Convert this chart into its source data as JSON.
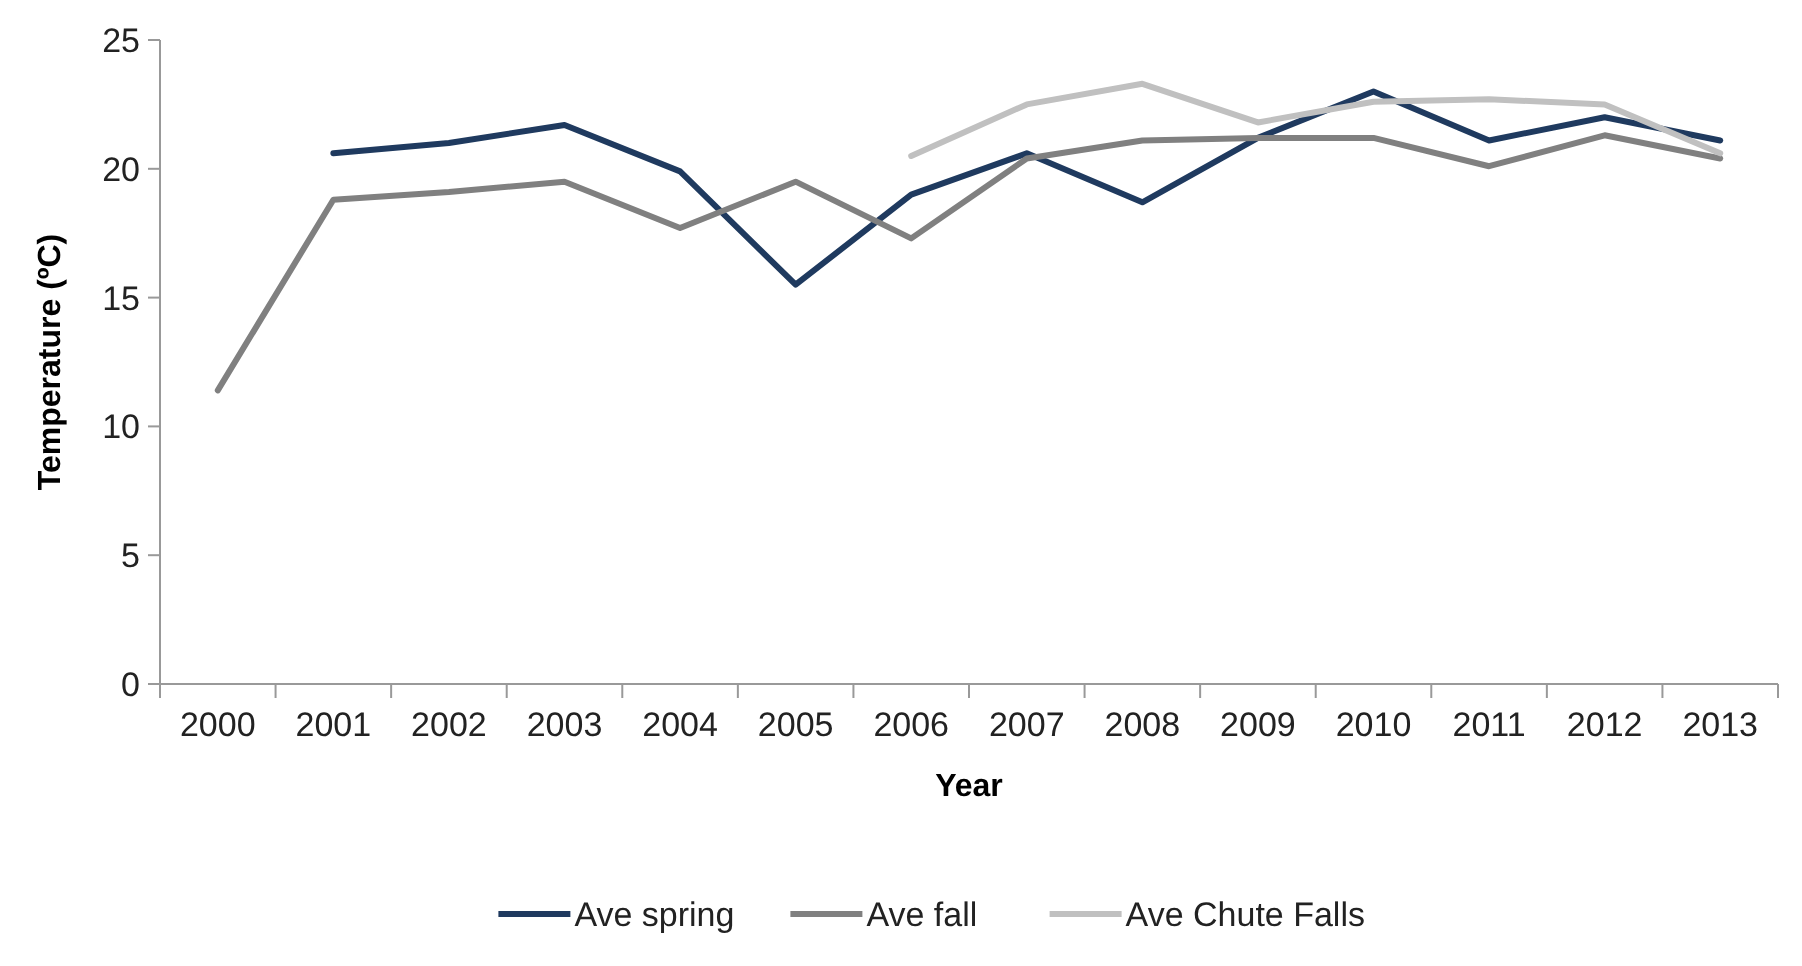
{
  "chart_data": {
    "type": "line",
    "xlabel": "Year",
    "ylabel": "Temperature (ºC)",
    "categories": [
      "2000",
      "2001",
      "2002",
      "2003",
      "2004",
      "2005",
      "2006",
      "2007",
      "2008",
      "2009",
      "2010",
      "2011",
      "2012",
      "2013"
    ],
    "series": [
      {
        "name": "Ave spring",
        "color": "#1f3a5f",
        "values": [
          null,
          20.6,
          21.0,
          21.7,
          19.9,
          15.5,
          19.0,
          20.6,
          18.7,
          21.2,
          23.0,
          21.1,
          22.0,
          21.1
        ]
      },
      {
        "name": "Ave fall",
        "color": "#808080",
        "values": [
          11.4,
          18.8,
          19.1,
          19.5,
          17.7,
          19.5,
          17.3,
          20.4,
          21.1,
          21.2,
          21.2,
          20.1,
          21.3,
          20.4
        ]
      },
      {
        "name": "Ave Chute Falls",
        "color": "#c0c0c0",
        "values": [
          null,
          null,
          null,
          null,
          null,
          null,
          20.5,
          22.5,
          23.3,
          21.8,
          22.6,
          22.7,
          22.5,
          20.6
        ]
      }
    ],
    "ylim": [
      0,
      25
    ],
    "yticks": [
      0,
      5,
      10,
      15,
      20,
      25
    ],
    "grid": false,
    "legend": "bottom",
    "marker": "none",
    "line_style": "solid"
  }
}
